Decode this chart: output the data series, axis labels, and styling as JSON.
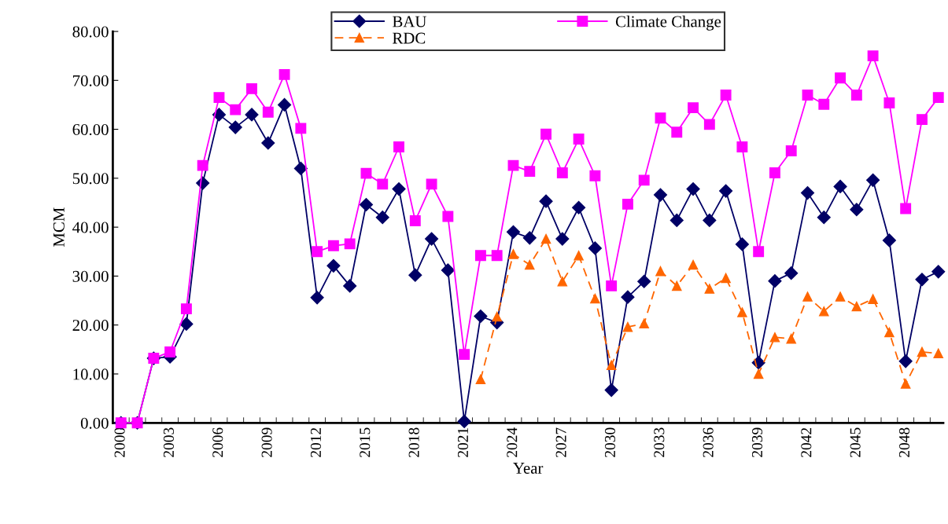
{
  "chart_data": {
    "type": "line",
    "xlabel": "Year",
    "ylabel": "MCM",
    "categories": [
      "2000",
      null,
      null,
      "2003",
      null,
      null,
      "2006",
      null,
      null,
      "2009",
      null,
      null,
      "2012",
      null,
      null,
      "2015",
      null,
      null,
      "2018",
      null,
      null,
      "2021",
      null,
      null,
      "2024",
      null,
      null,
      "2027",
      null,
      null,
      "2030",
      null,
      null,
      "2033",
      null,
      null,
      "2036",
      null,
      null,
      "2039",
      null,
      null,
      "2042",
      null,
      null,
      "2045",
      null,
      null,
      "2048",
      null,
      null
    ],
    "ylim": [
      0,
      80
    ],
    "yticks": [
      {
        "value": 0,
        "label": "0.00"
      },
      {
        "value": 10,
        "label": "10.00"
      },
      {
        "value": 20,
        "label": "20.00"
      },
      {
        "value": 30,
        "label": "30.00"
      },
      {
        "value": 40,
        "label": "40.00"
      },
      {
        "value": 50,
        "label": "50.00"
      },
      {
        "value": 60,
        "label": "60.00"
      },
      {
        "value": 70,
        "label": "70.00"
      },
      {
        "value": 80,
        "label": "80.00"
      }
    ],
    "grid": false,
    "legend": "top",
    "series": [
      {
        "name": "BAU",
        "color": "#000066",
        "marker": "diamond",
        "line_style": "solid",
        "values": [
          0,
          0,
          13.2,
          13.5,
          20.2,
          49.0,
          63.0,
          60.4,
          63.0,
          57.2,
          65.0,
          52.0,
          25.6,
          32.1,
          28.0,
          44.6,
          42.0,
          47.8,
          30.2,
          37.6,
          31.2,
          0.3,
          21.8,
          20.5,
          39.0,
          37.8,
          45.3,
          37.6,
          44.0,
          35.7,
          6.7,
          25.7,
          28.9,
          46.6,
          41.4,
          47.8,
          41.4,
          47.4,
          36.5,
          12.3,
          29.0,
          30.6,
          47.0,
          42.0,
          48.3,
          43.6,
          49.6,
          37.3,
          12.6,
          29.3,
          30.9
        ]
      },
      {
        "name": "Climate Change",
        "color": "#ff00ff",
        "marker": "square",
        "line_style": "solid",
        "values": [
          0,
          0,
          13.2,
          14.5,
          23.3,
          52.6,
          66.5,
          64.0,
          68.3,
          63.5,
          71.2,
          60.2,
          35.0,
          36.2,
          36.6,
          51.0,
          48.8,
          56.4,
          41.3,
          48.8,
          42.2,
          14.0,
          34.2,
          34.2,
          52.6,
          51.4,
          59.0,
          51.1,
          58.0,
          50.5,
          28.0,
          44.7,
          49.6,
          62.3,
          59.4,
          64.4,
          61.0,
          67.0,
          56.4,
          35.0,
          51.1,
          55.6,
          67.0,
          65.1,
          70.5,
          67.0,
          75.0,
          65.4,
          43.8,
          62.0,
          66.5
        ]
      },
      {
        "name": "RDC",
        "color": "#ff6600",
        "marker": "triangle",
        "line_style": "dashed",
        "values": [
          null,
          null,
          null,
          null,
          null,
          null,
          null,
          null,
          null,
          null,
          null,
          null,
          null,
          null,
          null,
          null,
          null,
          null,
          null,
          null,
          null,
          null,
          8.9,
          21.7,
          34.5,
          32.3,
          37.6,
          28.9,
          34.2,
          25.4,
          11.8,
          19.6,
          20.3,
          31.0,
          28.0,
          32.3,
          27.4,
          29.6,
          22.6,
          10.0,
          17.5,
          17.2,
          25.8,
          22.8,
          25.8,
          23.8,
          25.3,
          18.5,
          8.0,
          14.5,
          14.2
        ]
      }
    ]
  }
}
